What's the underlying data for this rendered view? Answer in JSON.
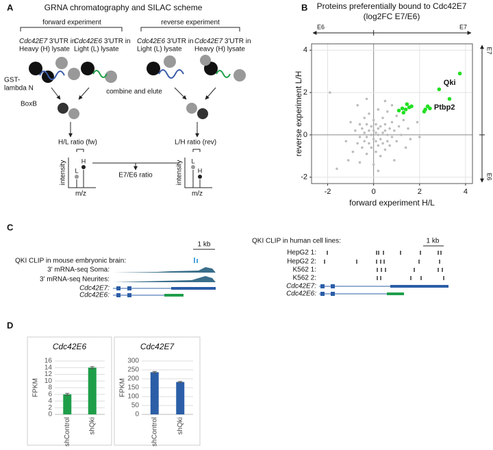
{
  "panel_labels": [
    "A",
    "B",
    "C",
    "D"
  ],
  "scheme": {
    "title": "GRNA chromatography and SILAC scheme",
    "forward": "forward experiment",
    "reverse": "reverse experiment",
    "lysates": [
      {
        "gene": "Cdc42E7",
        "rest": " 3'UTR in",
        "line2": "Heavy (H) lysate"
      },
      {
        "gene": "Cdc42E6",
        "rest": " 3'UTR in",
        "line2": "Light (L) lysate"
      },
      {
        "gene": "Cdc42E6",
        "rest": " 3'UTR in",
        "line2": "Light (L) lysate"
      },
      {
        "gene": "Cdc42E7",
        "rest": " 3'UTR in",
        "line2": "Heavy (H) lysate"
      }
    ],
    "gst": [
      "GST-",
      "lambda N"
    ],
    "boxb": "BoxB",
    "combine": "combine and elute",
    "ratio_fw": "H/L ratio (fw)",
    "ratio_rev": "L/H ratio (rev)",
    "intensity": "intensity",
    "mz": "m/z",
    "L": "L",
    "H": "H",
    "final": "E7/E6 ratio"
  },
  "chart_data": [
    {
      "type": "scatter",
      "title": "Proteins preferentially bound to Cdc42E7",
      "subtitle": "(log2FC E7/E6)",
      "xlabel": "forward experiment H/L",
      "ylabel": "reverse experiment L/H",
      "top_axis": [
        "E6",
        "E7"
      ],
      "right_axis": [
        "E7",
        "E6"
      ],
      "annotations": [
        "Qki",
        "Ptbp2"
      ],
      "xlim": [
        -2.7,
        4.3
      ],
      "ylim": [
        -2.3,
        4.3
      ],
      "xticks": [
        -2,
        0,
        2,
        4
      ],
      "yticks": [
        -2,
        0,
        2,
        4
      ],
      "grid": true,
      "series": [
        {
          "color": "#bdbdbd",
          "x": [
            -1.9,
            -1.6,
            -1.2,
            -1.0,
            -0.9,
            -0.8,
            -0.7,
            -0.7,
            -0.6,
            -0.6,
            -0.5,
            -0.5,
            -0.4,
            -0.4,
            -0.4,
            -0.3,
            -0.3,
            -0.3,
            -0.2,
            -0.2,
            -0.2,
            -0.1,
            -0.1,
            -0.1,
            0.0,
            0.0,
            0.0,
            0.0,
            0.1,
            0.1,
            0.1,
            0.1,
            0.2,
            0.2,
            0.2,
            0.2,
            0.3,
            0.3,
            0.3,
            0.4,
            0.4,
            0.4,
            0.5,
            0.5,
            0.5,
            0.6,
            0.6,
            0.6,
            0.7,
            0.7,
            0.8,
            0.8,
            0.9,
            0.9,
            1.0,
            1.0,
            1.1,
            1.2,
            1.3,
            1.5,
            1.6,
            1.9,
            2.0,
            -0.3,
            0.5,
            -1.1,
            0.2,
            0.8,
            -0.6,
            1.4
          ],
          "y": [
            2.0,
            -1.6,
            -0.3,
            0.6,
            -0.8,
            0.2,
            1.4,
            -0.4,
            0.5,
            -0.1,
            0.3,
            -0.6,
            0.8,
            0.1,
            -0.3,
            0.5,
            -0.1,
            -0.9,
            0.2,
            -0.4,
            1.0,
            0.4,
            0.0,
            -0.6,
            0.2,
            -0.2,
            -1.4,
            0.7,
            0.1,
            -0.3,
            0.5,
            -0.8,
            0.0,
            0.3,
            -0.5,
            1.2,
            -0.2,
            0.4,
            -1.0,
            0.1,
            -0.4,
            0.8,
            0.2,
            -0.7,
            0.5,
            0.0,
            -0.3,
            1.1,
            0.3,
            -0.5,
            0.6,
            -0.1,
            0.2,
            -1.2,
            0.9,
            -0.3,
            0.4,
            0.0,
            0.7,
            0.3,
            -0.2,
            0.6,
            -0.1,
            1.7,
            1.6,
            -1.2,
            -1.7,
            1.4,
            -1.3,
            -0.6
          ]
        },
        {
          "color": "#22e022",
          "x": [
            1.1,
            1.25,
            1.4,
            1.45,
            1.55,
            1.65,
            1.3,
            2.25,
            2.35,
            2.45,
            3.3,
            2.85,
            3.75,
            2.2
          ],
          "y": [
            1.15,
            1.25,
            1.2,
            1.45,
            1.3,
            1.35,
            1.05,
            1.2,
            1.35,
            1.25,
            1.7,
            2.15,
            2.9,
            1.1
          ]
        }
      ]
    },
    {
      "type": "bar",
      "title": "Cdc42E6",
      "ylabel": "FPKM",
      "categories": [
        "shControl",
        "shQki"
      ],
      "values": [
        6,
        14
      ],
      "errors": [
        0.3,
        0.3
      ],
      "color": "#1f9e4a",
      "ylim": [
        0,
        16
      ],
      "yticks": [
        0,
        2,
        4,
        6,
        8,
        10,
        12,
        14,
        16
      ],
      "grid": true
    },
    {
      "type": "bar",
      "title": "Cdc42E7",
      "ylabel": "FPKM",
      "categories": [
        "shControl",
        "shQki"
      ],
      "values": [
        237,
        182
      ],
      "errors": [
        4,
        3
      ],
      "color": "#2b5ea7",
      "ylim": [
        0,
        300
      ],
      "yticks": [
        0,
        50,
        100,
        150,
        200,
        250,
        300
      ],
      "grid": true
    }
  ],
  "clip": {
    "mouse": {
      "scale": "1 kb",
      "tracks": [
        "QKI CLIP in mouse embryonic brain:",
        "3' mRNA-seq Soma:",
        "3' mRNA-seq Neurites:",
        "Cdc42E7:",
        "Cdc42E6:"
      ]
    },
    "human": {
      "title": "QKI CLIP in human cell lines:",
      "scale": "1 kb",
      "tracks": [
        "HepG2 1:",
        "HepG2 2:",
        "K562 1:",
        "K562 2:",
        "Cdc42E7:",
        "Cdc42E6:"
      ]
    }
  }
}
